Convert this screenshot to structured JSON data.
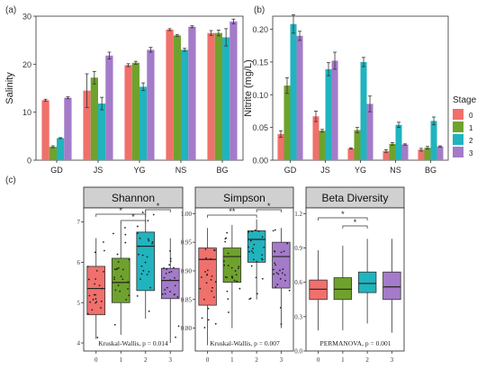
{
  "panel_labels": {
    "a": "(a)",
    "b": "(b)",
    "c": "(c)"
  },
  "colors": {
    "0": "#F0706C",
    "1": "#6FA22D",
    "2": "#20B4BE",
    "3": "#A47BC9",
    "strip": "#d0d0d0",
    "frame": "#222222"
  },
  "legend": {
    "title": "Stage",
    "items": [
      "0",
      "1",
      "2",
      "3"
    ]
  },
  "chart_data": [
    {
      "type": "bar",
      "panel": "a",
      "ylabel": "Salinity",
      "ylim": [
        0,
        30
      ],
      "yticks": [
        "0",
        "10",
        "20",
        "30"
      ],
      "categories": [
        "GD",
        "JS",
        "YG",
        "NS",
        "BG"
      ],
      "series": [
        {
          "name": "0",
          "values": [
            12.5,
            14.5,
            19.8,
            27.2,
            26.5
          ],
          "errors": [
            0.2,
            3.5,
            0.3,
            0.2,
            0.5
          ]
        },
        {
          "name": "1",
          "values": [
            2.8,
            17.2,
            20.3,
            26.0,
            26.5
          ],
          "errors": [
            0.2,
            1.3,
            0.3,
            0.2,
            0.6
          ]
        },
        {
          "name": "2",
          "values": [
            4.6,
            11.8,
            15.3,
            23.0,
            25.6
          ],
          "errors": [
            0.1,
            1.3,
            0.8,
            0.3,
            1.8
          ]
        },
        {
          "name": "3",
          "values": [
            13.0,
            21.8,
            23.0,
            27.8,
            28.9
          ],
          "errors": [
            0.2,
            0.7,
            0.5,
            0.2,
            0.5
          ]
        }
      ]
    },
    {
      "type": "bar",
      "panel": "b",
      "ylabel": "Nitrite (mg/L)",
      "ylim": [
        0,
        0.22
      ],
      "yticks": [
        "0.00",
        "0.05",
        "0.10",
        "0.15",
        "0.20"
      ],
      "categories": [
        "GD",
        "JS",
        "YG",
        "NS",
        "BG"
      ],
      "series": [
        {
          "name": "0",
          "values": [
            0.04,
            0.067,
            0.018,
            0.014,
            0.016
          ],
          "errors": [
            0.005,
            0.008,
            0.001,
            0.002,
            0.002
          ]
        },
        {
          "name": "1",
          "values": [
            0.114,
            0.045,
            0.046,
            0.025,
            0.019
          ],
          "errors": [
            0.012,
            0.002,
            0.004,
            0.002,
            0.002
          ]
        },
        {
          "name": "2",
          "values": [
            0.208,
            0.139,
            0.15,
            0.054,
            0.06
          ],
          "errors": [
            0.014,
            0.01,
            0.007,
            0.004,
            0.006
          ]
        },
        {
          "name": "3",
          "values": [
            0.19,
            0.152,
            0.086,
            0.024,
            0.021
          ],
          "errors": [
            0.007,
            0.013,
            0.012,
            0.001,
            0.001
          ]
        }
      ]
    },
    {
      "type": "box",
      "panel": "c",
      "title": "Shannon",
      "ylim": [
        3.8,
        7.35
      ],
      "yticks": [
        "4",
        "5",
        "6",
        "7"
      ],
      "categories": [
        "0",
        "1",
        "2",
        "3"
      ],
      "boxes": [
        {
          "min": 4.1,
          "q1": 4.7,
          "median": 5.35,
          "q3": 5.9,
          "max": 6.6
        },
        {
          "min": 4.2,
          "q1": 5.0,
          "median": 5.5,
          "q3": 6.1,
          "max": 7.0
        },
        {
          "min": 4.6,
          "q1": 5.3,
          "median": 6.4,
          "q3": 6.75,
          "max": 7.3
        },
        {
          "min": 4.0,
          "q1": 5.1,
          "median": 5.55,
          "q3": 5.85,
          "max": 6.6
        }
      ],
      "significance": [
        "*",
        "*",
        "*"
      ],
      "annotation": "Kruskal-Wallis, p = 0.014"
    },
    {
      "type": "box",
      "panel": "c",
      "title": "Simpson",
      "ylim": [
        0.76,
        1.01
      ],
      "yticks": [
        "0.80",
        "0.85",
        "0.90",
        "0.95",
        "1.00"
      ],
      "categories": [
        "0",
        "1",
        "2",
        "3"
      ],
      "boxes": [
        {
          "min": 0.77,
          "q1": 0.84,
          "median": 0.92,
          "q3": 0.94,
          "max": 0.975
        },
        {
          "min": 0.8,
          "q1": 0.88,
          "median": 0.925,
          "q3": 0.94,
          "max": 0.98
        },
        {
          "min": 0.85,
          "q1": 0.915,
          "median": 0.955,
          "q3": 0.97,
          "max": 0.99
        },
        {
          "min": 0.8,
          "q1": 0.87,
          "median": 0.925,
          "q3": 0.95,
          "max": 0.975
        }
      ],
      "significance": [
        "**",
        "*"
      ],
      "annotation": "Kruskal-Wallis, p = 0.007"
    },
    {
      "type": "box",
      "panel": "c",
      "title": "Beta Diversity",
      "ylim": [
        0.0,
        1.25
      ],
      "yticks": [
        "0.0",
        "0.3",
        "0.6",
        "0.9",
        "1.2"
      ],
      "categories": [
        "0",
        "1",
        "2",
        "3"
      ],
      "boxes": [
        {
          "min": 0.18,
          "q1": 0.45,
          "median": 0.54,
          "q3": 0.62,
          "max": 0.88
        },
        {
          "min": 0.18,
          "q1": 0.45,
          "median": 0.54,
          "q3": 0.64,
          "max": 0.92
        },
        {
          "min": 0.24,
          "q1": 0.51,
          "median": 0.59,
          "q3": 0.69,
          "max": 0.98
        },
        {
          "min": 0.16,
          "q1": 0.45,
          "median": 0.56,
          "q3": 0.69,
          "max": 0.98
        }
      ],
      "significance": [
        "*",
        "*"
      ],
      "annotation": "PERMANOVA, p = 0.001"
    }
  ]
}
